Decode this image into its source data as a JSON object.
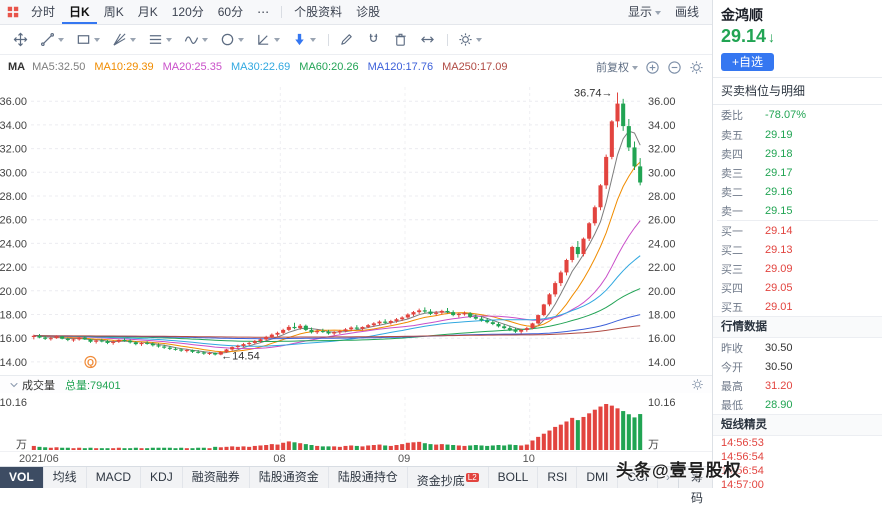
{
  "colors": {
    "up": "#e2443f",
    "down": "#21a453",
    "accent": "#3577f1"
  },
  "header": {
    "periods": [
      "分时",
      "日K",
      "周K",
      "月K",
      "120分",
      "60分"
    ],
    "active_period": "日K",
    "more": "⋯",
    "links": [
      "个股资料",
      "诊股"
    ],
    "display": "显示",
    "draw": "画线"
  },
  "stock": {
    "name": "金鸿顺",
    "price": "29.14",
    "change_direction": "down",
    "add_watch": "+自选"
  },
  "toolbar2": {
    "tools": [
      {
        "icon": "move-tool-icon",
        "caret": false
      },
      {
        "icon": "trendline-tool-icon",
        "caret": true
      },
      {
        "icon": "rect-tool-icon",
        "caret": true
      },
      {
        "icon": "gann-fan-icon",
        "caret": true
      },
      {
        "icon": "fib-lines-icon",
        "caret": true
      },
      {
        "icon": "wave-tool-icon",
        "caret": true
      },
      {
        "icon": "circle-tool-icon",
        "caret": true
      },
      {
        "icon": "angle-tool-icon",
        "caret": true
      },
      {
        "icon": "arrow-marker-icon",
        "caret": true
      },
      {
        "icon": "separator"
      },
      {
        "icon": "pencil-icon",
        "caret": false
      },
      {
        "icon": "magnet-icon",
        "caret": false
      },
      {
        "icon": "trash-icon",
        "caret": false
      },
      {
        "icon": "resize-arrows-icon",
        "caret": false
      },
      {
        "icon": "separator"
      },
      {
        "icon": "gear-icon",
        "caret": true
      }
    ]
  },
  "ma_bar": {
    "prefix": "MA",
    "adjust": "前复权",
    "zoom_icons": [
      "plus-circle-icon",
      "minus-circle-icon",
      "gear-icon"
    ],
    "items": [
      {
        "label": "MA5:32.50",
        "color": "#7d7d7d"
      },
      {
        "label": "MA10:29.39",
        "color": "#f08c00"
      },
      {
        "label": "MA20:25.35",
        "color": "#c94fc9"
      },
      {
        "label": "MA30:22.69",
        "color": "#31a8e0"
      },
      {
        "label": "MA60:20.26",
        "color": "#22a355"
      },
      {
        "label": "MA120:17.76",
        "color": "#3b5fd9"
      },
      {
        "label": "MA250:17.09",
        "color": "#b04a43"
      }
    ]
  },
  "chart_data": {
    "type": "candlestick",
    "title": "金鸿顺 日K 前复权",
    "y_ticks": [
      "36.00",
      "34.00",
      "32.00",
      "30.00",
      "28.00",
      "26.00",
      "24.00",
      "22.00",
      "20.00",
      "18.00",
      "16.00",
      "14.00"
    ],
    "y_range": [
      13.4,
      37.2
    ],
    "x_ticks": [
      {
        "label": "2021/06",
        "index": 0
      },
      {
        "label": "08",
        "index": 44
      },
      {
        "label": "09",
        "index": 66
      },
      {
        "label": "10",
        "index": 88
      }
    ],
    "annotations": {
      "high": "36.74",
      "low": "14.54",
      "event_label": "Q",
      "event_index": 10
    },
    "volume_axis": {
      "max": 10.16,
      "label": "10.16",
      "unit": "万"
    },
    "ma": [
      {
        "period": 5,
        "color": "#7d7d7d"
      },
      {
        "period": 10,
        "color": "#f08c00"
      },
      {
        "period": 20,
        "color": "#c94fc9"
      },
      {
        "period": 30,
        "color": "#31a8e0"
      },
      {
        "period": 60,
        "color": "#22a355"
      },
      {
        "period": 120,
        "color": "#3b5fd9"
      },
      {
        "period": 250,
        "color": "#b04a43"
      }
    ],
    "candles": [
      [
        16.1,
        16.3,
        15.9,
        16.2,
        0.9
      ],
      [
        16.2,
        16.35,
        16.0,
        16.05,
        0.7
      ],
      [
        16.05,
        16.2,
        15.85,
        15.95,
        0.6
      ],
      [
        15.95,
        16.1,
        15.8,
        16.0,
        0.5
      ],
      [
        16.0,
        16.25,
        15.95,
        16.15,
        0.6
      ],
      [
        16.15,
        16.2,
        15.9,
        15.95,
        0.5
      ],
      [
        15.95,
        16.05,
        15.75,
        15.85,
        0.5
      ],
      [
        15.85,
        16.0,
        15.7,
        15.9,
        0.4
      ],
      [
        15.9,
        16.1,
        15.8,
        16.05,
        0.5
      ],
      [
        16.05,
        16.15,
        15.85,
        15.9,
        0.4
      ],
      [
        15.9,
        15.95,
        15.6,
        15.7,
        0.5
      ],
      [
        15.7,
        15.9,
        15.55,
        15.8,
        0.4
      ],
      [
        15.8,
        15.95,
        15.65,
        15.75,
        0.4
      ],
      [
        15.75,
        15.85,
        15.5,
        15.6,
        0.4
      ],
      [
        15.6,
        15.8,
        15.45,
        15.7,
        0.4
      ],
      [
        15.7,
        15.9,
        15.6,
        15.85,
        0.5
      ],
      [
        15.85,
        16.0,
        15.7,
        15.8,
        0.4
      ],
      [
        15.8,
        15.9,
        15.55,
        15.65,
        0.4
      ],
      [
        15.65,
        15.75,
        15.4,
        15.5,
        0.5
      ],
      [
        15.5,
        15.7,
        15.35,
        15.6,
        0.4
      ],
      [
        15.6,
        15.75,
        15.45,
        15.55,
        0.4
      ],
      [
        15.55,
        15.65,
        15.3,
        15.4,
        0.5
      ],
      [
        15.4,
        15.55,
        15.2,
        15.3,
        0.5
      ],
      [
        15.3,
        15.45,
        15.1,
        15.2,
        0.5
      ],
      [
        15.2,
        15.35,
        15.0,
        15.1,
        0.5
      ],
      [
        15.1,
        15.25,
        14.95,
        15.05,
        0.4
      ],
      [
        15.05,
        15.15,
        14.85,
        14.95,
        0.5
      ],
      [
        14.95,
        15.1,
        14.8,
        15.0,
        0.4
      ],
      [
        15.0,
        15.05,
        14.75,
        14.85,
        0.4
      ],
      [
        14.85,
        15.0,
        14.7,
        14.8,
        0.5
      ],
      [
        14.8,
        14.9,
        14.6,
        14.7,
        0.5
      ],
      [
        14.7,
        14.85,
        14.58,
        14.75,
        0.4
      ],
      [
        14.75,
        14.8,
        14.54,
        14.62,
        0.7
      ],
      [
        14.62,
        14.9,
        14.56,
        14.85,
        0.6
      ],
      [
        14.85,
        15.1,
        14.75,
        15.05,
        0.7
      ],
      [
        15.05,
        15.3,
        14.95,
        15.25,
        0.8
      ],
      [
        15.25,
        15.45,
        15.1,
        15.35,
        0.7
      ],
      [
        15.35,
        15.6,
        15.25,
        15.5,
        0.8
      ],
      [
        15.5,
        15.7,
        15.35,
        15.6,
        0.7
      ],
      [
        15.6,
        15.85,
        15.5,
        15.75,
        0.9
      ],
      [
        15.75,
        16.0,
        15.65,
        15.9,
        1.0
      ],
      [
        15.9,
        16.2,
        15.8,
        16.1,
        1.1
      ],
      [
        16.1,
        16.4,
        16.0,
        16.3,
        1.3
      ],
      [
        16.3,
        16.55,
        16.15,
        16.45,
        1.2
      ],
      [
        16.45,
        16.8,
        16.35,
        16.7,
        1.6
      ],
      [
        16.7,
        17.1,
        16.6,
        16.95,
        1.9
      ],
      [
        16.95,
        17.3,
        16.75,
        16.85,
        1.7
      ],
      [
        16.85,
        17.2,
        16.7,
        17.05,
        1.5
      ],
      [
        17.05,
        17.15,
        16.6,
        16.7,
        1.3
      ],
      [
        16.7,
        16.9,
        16.4,
        16.5,
        1.1
      ],
      [
        16.5,
        16.75,
        16.35,
        16.6,
        0.9
      ],
      [
        16.6,
        16.8,
        16.45,
        16.55,
        0.8
      ],
      [
        16.55,
        16.7,
        16.3,
        16.4,
        0.8
      ],
      [
        16.4,
        16.6,
        16.25,
        16.5,
        0.8
      ],
      [
        16.5,
        16.7,
        16.35,
        16.6,
        0.7
      ],
      [
        16.6,
        16.85,
        16.5,
        16.75,
        0.9
      ],
      [
        16.75,
        17.0,
        16.6,
        16.9,
        1.0
      ],
      [
        16.9,
        17.1,
        16.7,
        16.8,
        0.9
      ],
      [
        16.8,
        17.0,
        16.65,
        16.95,
        0.8
      ],
      [
        16.95,
        17.2,
        16.85,
        17.1,
        1.0
      ],
      [
        17.1,
        17.35,
        16.95,
        17.25,
        1.1
      ],
      [
        17.25,
        17.5,
        17.1,
        17.4,
        1.2
      ],
      [
        17.4,
        17.6,
        17.2,
        17.3,
        1.0
      ],
      [
        17.3,
        17.55,
        17.15,
        17.45,
        0.9
      ],
      [
        17.45,
        17.7,
        17.3,
        17.6,
        1.1
      ],
      [
        17.6,
        17.85,
        17.45,
        17.75,
        1.3
      ],
      [
        17.75,
        18.1,
        17.65,
        18.0,
        1.6
      ],
      [
        18.0,
        18.3,
        17.85,
        18.2,
        1.7
      ],
      [
        18.2,
        18.5,
        18.05,
        18.35,
        1.8
      ],
      [
        18.35,
        18.6,
        18.1,
        18.25,
        1.5
      ],
      [
        18.25,
        18.45,
        17.95,
        18.05,
        1.3
      ],
      [
        18.05,
        18.3,
        17.9,
        18.15,
        1.2
      ],
      [
        18.15,
        18.4,
        18.0,
        18.3,
        1.3
      ],
      [
        18.3,
        18.55,
        18.1,
        18.2,
        1.2
      ],
      [
        18.2,
        18.35,
        17.85,
        17.95,
        1.1
      ],
      [
        17.95,
        18.15,
        17.75,
        18.05,
        1.0
      ],
      [
        18.05,
        18.25,
        17.9,
        18.1,
        0.9
      ],
      [
        18.1,
        18.2,
        17.7,
        17.8,
        1.0
      ],
      [
        17.8,
        18.0,
        17.55,
        17.65,
        1.1
      ],
      [
        17.65,
        17.85,
        17.4,
        17.5,
        1.0
      ],
      [
        17.5,
        17.7,
        17.25,
        17.35,
        0.9
      ],
      [
        17.35,
        17.55,
        17.1,
        17.2,
        1.0
      ],
      [
        17.2,
        17.35,
        16.9,
        17.0,
        1.1
      ],
      [
        17.0,
        17.2,
        16.75,
        16.85,
        1.0
      ],
      [
        16.85,
        17.05,
        16.6,
        16.7,
        1.2
      ],
      [
        16.7,
        16.9,
        16.45,
        16.55,
        1.1
      ],
      [
        16.55,
        16.8,
        16.4,
        16.7,
        1.0
      ],
      [
        16.7,
        16.95,
        16.55,
        16.85,
        1.2
      ],
      [
        16.85,
        17.3,
        16.75,
        17.25,
        2.1
      ],
      [
        17.25,
        18.0,
        17.15,
        17.95,
        2.9
      ],
      [
        17.95,
        18.9,
        17.85,
        18.85,
        3.6
      ],
      [
        18.85,
        19.8,
        18.7,
        19.7,
        4.3
      ],
      [
        19.7,
        20.8,
        19.5,
        20.65,
        5.1
      ],
      [
        20.65,
        21.7,
        20.4,
        21.55,
        5.6
      ],
      [
        21.55,
        22.7,
        21.3,
        22.6,
        6.3
      ],
      [
        22.6,
        23.8,
        22.4,
        23.7,
        7.1
      ],
      [
        23.7,
        24.2,
        22.8,
        23.1,
        6.6
      ],
      [
        23.1,
        24.5,
        22.9,
        24.4,
        7.3
      ],
      [
        24.4,
        25.8,
        24.2,
        25.7,
        8.1
      ],
      [
        25.7,
        27.2,
        25.5,
        27.05,
        8.9
      ],
      [
        27.05,
        29.0,
        26.8,
        28.9,
        9.6
      ],
      [
        28.9,
        31.5,
        28.6,
        31.3,
        10.16
      ],
      [
        31.3,
        34.4,
        31.1,
        34.3,
        9.8
      ],
      [
        34.3,
        36.74,
        33.8,
        35.8,
        9.2
      ],
      [
        35.8,
        36.2,
        33.5,
        33.9,
        8.6
      ],
      [
        33.9,
        34.5,
        31.8,
        32.1,
        7.9
      ],
      [
        32.1,
        32.6,
        30.2,
        30.5,
        7.2
      ],
      [
        30.5,
        31.2,
        28.9,
        29.14,
        7.94
      ]
    ]
  },
  "volume_pane": {
    "label": "成交量",
    "total": "总量:79401"
  },
  "order_panel": {
    "tab": "买卖档位与明细",
    "weibi_label": "委比",
    "weibi_value": "-78.07%",
    "asks": [
      {
        "label": "卖五",
        "price": "29.19"
      },
      {
        "label": "卖四",
        "price": "29.18"
      },
      {
        "label": "卖三",
        "price": "29.17"
      },
      {
        "label": "卖二",
        "price": "29.16"
      },
      {
        "label": "卖一",
        "price": "29.15"
      }
    ],
    "bids": [
      {
        "label": "买一",
        "price": "29.14"
      },
      {
        "label": "买二",
        "price": "29.13"
      },
      {
        "label": "买三",
        "price": "29.09"
      },
      {
        "label": "买四",
        "price": "29.05"
      },
      {
        "label": "买五",
        "price": "29.01"
      }
    ],
    "quote_header": "行情数据",
    "quotes": [
      {
        "label": "昨收",
        "value": "30.50",
        "tone": "flat"
      },
      {
        "label": "今开",
        "value": "30.50",
        "tone": "flat"
      },
      {
        "label": "最高",
        "value": "31.20",
        "tone": "up"
      },
      {
        "label": "最低",
        "value": "28.90",
        "tone": "down"
      }
    ],
    "alerts_header": "短线精灵",
    "alerts": [
      "14:56:53",
      "14:56:54",
      "14:56:54",
      "14:57:00"
    ]
  },
  "bottom_tabs": {
    "tabs": [
      "VOL",
      "均线",
      "MACD",
      "KDJ",
      "融资融券",
      "陆股通资金",
      "陆股通持仓",
      "资金抄底",
      "BOLL",
      "RSI",
      "DMI",
      "CCI"
    ],
    "active": "VOL",
    "badge_tab": "资金抄底",
    "badge": "L2",
    "more": "›",
    "right": "筹码"
  },
  "watermark": "头条@壹号股权"
}
